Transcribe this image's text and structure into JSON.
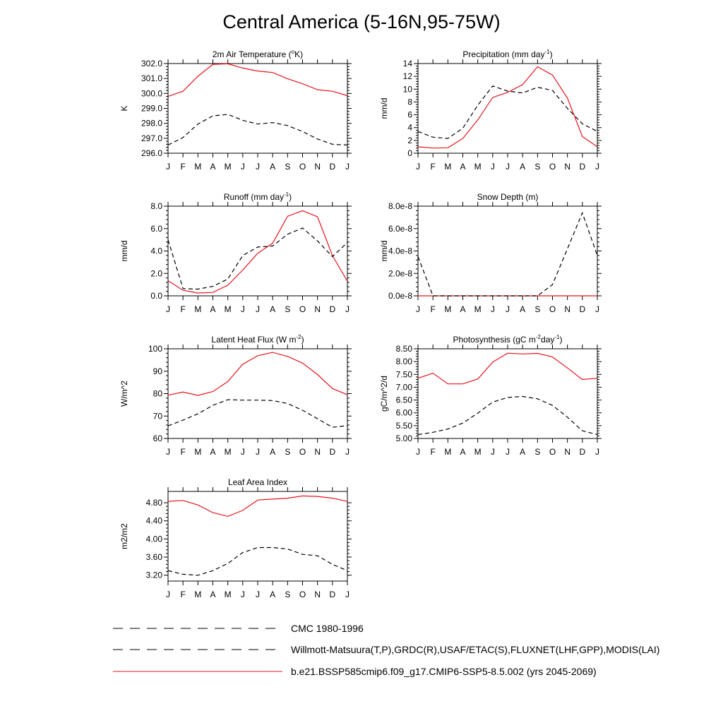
{
  "page": {
    "title": "Central America (5-16N,95-75W)"
  },
  "colors": {
    "model": "#e8141c",
    "obs": "#000000",
    "background": "#ffffff"
  },
  "legend": [
    {
      "label": "CMC 1980-1996",
      "style": "dashed",
      "color": "#000000"
    },
    {
      "label": "Willmott-Matsuura(T,P),GRDC(R),USAF/ETAC(S),FLUXNET(LHF,GPP),MODIS(LAI)",
      "style": "dashed",
      "color": "#000000"
    },
    {
      "label": "b.e21.BSSP585cmip6.f09_g17.CMIP6-SSP5-8.5.002 (yrs 2045-2069)",
      "style": "solid",
      "color": "#e8141c"
    }
  ],
  "chart_data": [
    {
      "type": "line",
      "title": "2m Air Temperature (",
      "title_sup": "o",
      "title_after": "K)",
      "title_end": "",
      "ylabel": "K",
      "ylim": [
        296.0,
        302.0
      ],
      "yticks": [
        "296.0",
        "297.0",
        "298.0",
        "299.0",
        "300.0",
        "301.0",
        "302.0"
      ],
      "categories": [
        "J",
        "F",
        "M",
        "A",
        "M",
        "J",
        "J",
        "A",
        "S",
        "O",
        "N",
        "D",
        "J"
      ],
      "series": [
        {
          "style": "solid",
          "color": "#e8141c",
          "values": [
            299.8,
            300.15,
            301.15,
            301.95,
            301.98,
            301.7,
            301.5,
            301.4,
            300.98,
            300.65,
            300.25,
            300.15,
            299.85
          ]
        },
        {
          "style": "dashed",
          "color": "#000000",
          "values": [
            296.55,
            297.05,
            297.95,
            298.5,
            298.6,
            298.2,
            297.95,
            298.05,
            297.85,
            297.45,
            296.95,
            296.6,
            296.55
          ]
        }
      ]
    },
    {
      "type": "line",
      "title": "Precipitation (mm day",
      "title_sup": "-1",
      "title_after": ")",
      "title_end": "",
      "ylabel": "mm/d",
      "ylim": [
        0,
        14
      ],
      "yticks": [
        "0",
        "2",
        "4",
        "6",
        "8",
        "10",
        "12",
        "14"
      ],
      "categories": [
        "J",
        "F",
        "M",
        "A",
        "M",
        "J",
        "J",
        "A",
        "S",
        "O",
        "N",
        "D",
        "J"
      ],
      "series": [
        {
          "style": "solid",
          "color": "#e8141c",
          "values": [
            1.0,
            0.8,
            0.85,
            2.3,
            5.2,
            8.7,
            9.5,
            10.7,
            13.5,
            12.2,
            8.6,
            2.6,
            1.0
          ]
        },
        {
          "style": "dashed",
          "color": "#000000",
          "values": [
            3.4,
            2.5,
            2.3,
            3.9,
            7.5,
            10.5,
            9.7,
            9.4,
            10.3,
            9.8,
            7.0,
            4.6,
            3.4
          ]
        }
      ]
    },
    {
      "type": "line",
      "title": "Runoff (mm day",
      "title_sup": "-1",
      "title_after": ")",
      "title_end": "",
      "ylabel": "mm/d",
      "ylim": [
        0,
        8
      ],
      "yticks": [
        "0.0",
        "2.0",
        "4.0",
        "6.0",
        "8.0"
      ],
      "categories": [
        "J",
        "F",
        "M",
        "A",
        "M",
        "J",
        "J",
        "A",
        "S",
        "O",
        "N",
        "D",
        "J"
      ],
      "series": [
        {
          "style": "solid",
          "color": "#e8141c",
          "values": [
            1.35,
            0.5,
            0.25,
            0.3,
            0.95,
            2.3,
            3.8,
            4.7,
            7.1,
            7.6,
            7.05,
            3.6,
            1.3
          ]
        },
        {
          "style": "dashed",
          "color": "#000000",
          "values": [
            5.0,
            0.65,
            0.6,
            0.85,
            1.5,
            3.6,
            4.35,
            4.45,
            5.5,
            6.05,
            4.9,
            3.5,
            4.75
          ]
        }
      ]
    },
    {
      "type": "line",
      "title": "Snow Depth (m)",
      "title_sup": "",
      "title_after": "",
      "title_end": "",
      "ylabel": "mm/d",
      "ylim": [
        0,
        8e-08
      ],
      "yticks": [
        "0.0e-8",
        "2.0e-8",
        "4.0e-8",
        "6.0e-8",
        "8.0e-8"
      ],
      "categories": [
        "J",
        "F",
        "M",
        "A",
        "M",
        "J",
        "J",
        "A",
        "S",
        "O",
        "N",
        "D",
        "J"
      ],
      "series": [
        {
          "style": "solid",
          "color": "#e8141c",
          "values": [
            0,
            0,
            0,
            0,
            0,
            0,
            0,
            0,
            0,
            0,
            0,
            0,
            0
          ]
        },
        {
          "style": "dashed",
          "color": "#000000",
          "values": [
            3.5e-08,
            0,
            0,
            0,
            0,
            0,
            0,
            0,
            0,
            1e-08,
            4.2e-08,
            7.4e-08,
            3.6e-08
          ]
        }
      ]
    },
    {
      "type": "line",
      "title": "Latent Heat Flux (W m",
      "title_sup": "-2",
      "title_after": ")",
      "title_end": "",
      "ylabel": "W/m^2",
      "ylim": [
        60,
        100
      ],
      "yticks": [
        "60",
        "70",
        "80",
        "90",
        "100"
      ],
      "categories": [
        "J",
        "F",
        "M",
        "A",
        "M",
        "J",
        "J",
        "A",
        "S",
        "O",
        "N",
        "D",
        "J"
      ],
      "series": [
        {
          "style": "solid",
          "color": "#e8141c",
          "values": [
            79.3,
            80.7,
            79.2,
            80.9,
            85.4,
            93.1,
            96.9,
            98.4,
            96.6,
            93.6,
            88.5,
            82.3,
            79.5
          ]
        },
        {
          "style": "dashed",
          "color": "#000000",
          "values": [
            65.6,
            68.2,
            71.0,
            74.8,
            77.3,
            77.1,
            77.1,
            76.9,
            75.6,
            72.6,
            68.8,
            65.0,
            65.7
          ]
        }
      ]
    },
    {
      "type": "line",
      "title": "Photosynthesis (gC m",
      "title_sup": "-2",
      "title_after": "day",
      "title_end": "-1",
      "ylabel": "gC/m^2/d",
      "ylim": [
        5.0,
        8.5
      ],
      "yticks": [
        "5.00",
        "5.50",
        "6.00",
        "6.50",
        "7.00",
        "7.50",
        "8.00",
        "8.50"
      ],
      "categories": [
        "J",
        "F",
        "M",
        "A",
        "M",
        "J",
        "J",
        "A",
        "S",
        "O",
        "N",
        "D",
        "J"
      ],
      "series": [
        {
          "style": "solid",
          "color": "#e8141c",
          "values": [
            7.35,
            7.55,
            7.13,
            7.13,
            7.32,
            7.98,
            8.33,
            8.3,
            8.32,
            8.18,
            7.75,
            7.3,
            7.35
          ]
        },
        {
          "style": "dashed",
          "color": "#000000",
          "values": [
            5.15,
            5.24,
            5.37,
            5.6,
            5.99,
            6.42,
            6.6,
            6.64,
            6.55,
            6.29,
            5.83,
            5.3,
            5.15
          ]
        }
      ]
    },
    {
      "type": "line",
      "title": "Leaf Area Index",
      "title_sup": "",
      "title_after": "",
      "title_end": "",
      "ylabel": "m2/m2",
      "ylim": [
        3.07,
        5.05
      ],
      "yticks": [
        "3.20",
        "3.60",
        "4.00",
        "4.40",
        "4.80"
      ],
      "categories": [
        "J",
        "F",
        "M",
        "A",
        "M",
        "J",
        "J",
        "A",
        "S",
        "O",
        "N",
        "D",
        "J"
      ],
      "series": [
        {
          "style": "solid",
          "color": "#e8141c",
          "values": [
            4.83,
            4.85,
            4.75,
            4.58,
            4.5,
            4.63,
            4.86,
            4.88,
            4.9,
            4.95,
            4.94,
            4.9,
            4.83
          ]
        },
        {
          "style": "dashed",
          "color": "#000000",
          "values": [
            3.3,
            3.22,
            3.2,
            3.3,
            3.46,
            3.7,
            3.81,
            3.81,
            3.78,
            3.66,
            3.63,
            3.44,
            3.3
          ]
        }
      ]
    }
  ]
}
